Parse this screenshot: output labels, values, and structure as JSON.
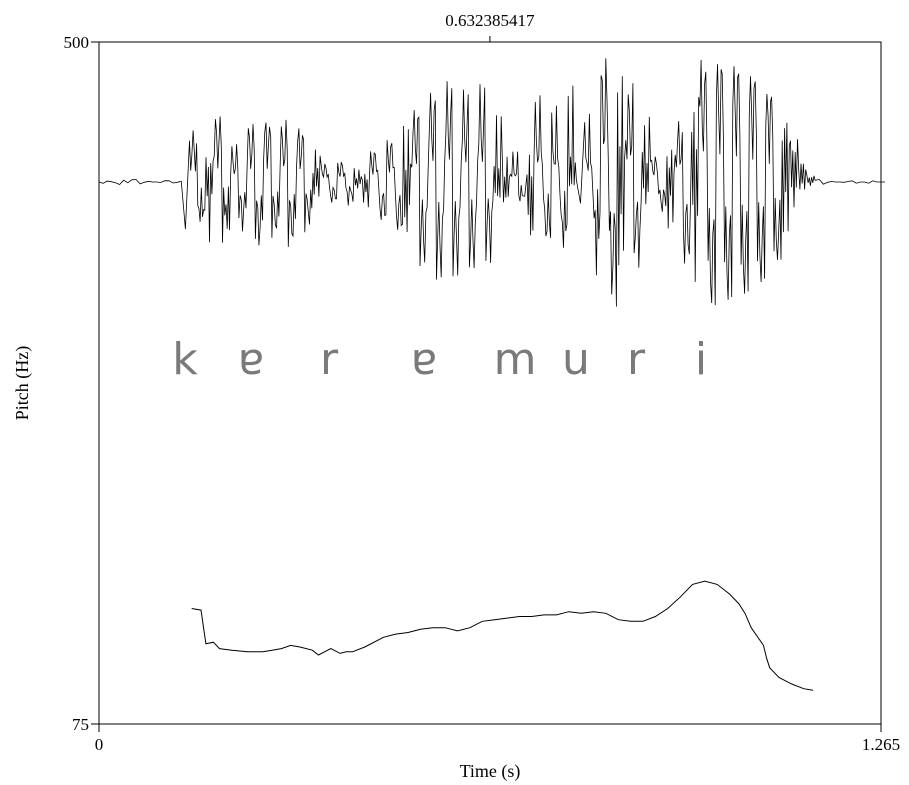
{
  "chart_data": {
    "type": "line",
    "title": "",
    "xlabel": "Time (s)",
    "ylabel": "Pitch (Hz)",
    "xlim": [
      0,
      1.265
    ],
    "ylim": [
      75,
      500
    ],
    "x_tick_labels": [
      "0",
      "1.265"
    ],
    "y_tick_labels": [
      "500",
      "75"
    ],
    "cursor": {
      "time": 0.632385417,
      "label": "0.632385417"
    },
    "grid": false,
    "legend": "none",
    "segments": [
      "k",
      "ɐ",
      "r",
      "ɐ",
      "m",
      "u",
      "r",
      "i"
    ],
    "series": [
      {
        "x": [
          0.15,
          0.165,
          0.173,
          0.185,
          0.195,
          0.215,
          0.24,
          0.265,
          0.28,
          0.295,
          0.31,
          0.325,
          0.345,
          0.355,
          0.375,
          0.39,
          0.4,
          0.41,
          0.43,
          0.46,
          0.48,
          0.5,
          0.52,
          0.54,
          0.56,
          0.58,
          0.6,
          0.62,
          0.64,
          0.66,
          0.68,
          0.7,
          0.72,
          0.74,
          0.76,
          0.78,
          0.8,
          0.82,
          0.84,
          0.86,
          0.88,
          0.9,
          0.92,
          0.94,
          0.96,
          0.98,
          1.0,
          1.02,
          1.035,
          1.045,
          1.055,
          1.075,
          1.08,
          1.085,
          1.1,
          1.12,
          1.14,
          1.155
        ],
        "y": [
          147,
          146,
          125,
          126,
          122,
          121,
          120,
          120,
          121,
          122,
          124,
          123,
          121,
          118,
          122,
          119,
          120,
          120,
          123,
          129,
          131,
          132,
          134,
          135,
          135,
          133,
          135,
          139,
          140,
          141,
          142,
          142,
          143,
          143,
          145,
          144,
          145,
          144,
          140,
          139,
          139,
          142,
          147,
          154,
          162,
          164,
          162,
          156,
          150,
          144,
          135,
          124,
          116,
          110,
          104,
          100,
          97,
          96
        ]
      }
    ],
    "waveform_samples": [
      0,
      0.01,
      -0.01,
      0.02,
      0.03,
      -0.02,
      0.01,
      0.0,
      0.02,
      -0.01,
      0.01,
      0.38,
      -0.41,
      0.22,
      0.48,
      -0.52,
      0.18,
      -0.3,
      0.4,
      -0.46,
      0.52,
      -0.44,
      0.36,
      -0.5,
      0.44,
      -0.38,
      0.26,
      0.12,
      -0.16,
      0.14,
      -0.18,
      0.1,
      0.06,
      0.22,
      -0.28,
      0.3,
      -0.35,
      0.4,
      0.52,
      -0.6,
      0.64,
      -0.7,
      0.72,
      -0.68,
      0.66,
      -0.62,
      0.7,
      -0.58,
      0.48,
      0.18,
      0.22,
      -0.1,
      0.2,
      0.62,
      -0.4,
      0.55,
      -0.3,
      0.7,
      0.04,
      0.5,
      -0.22,
      0.92,
      -0.9,
      0.8,
      0.72,
      -0.66,
      0.48,
      0.2,
      -0.18,
      0.26,
      0.38,
      -0.52,
      0.66,
      0.84,
      -0.98,
      1.0,
      -0.94,
      0.96,
      -0.92,
      0.9,
      -0.84,
      0.8,
      -0.7,
      0.62,
      0.4,
      0.2,
      0.06,
      0.03,
      -0.02,
      0.01,
      0.0,
      0.01,
      -0.01,
      0.0,
      0.01,
      0.0
    ]
  }
}
